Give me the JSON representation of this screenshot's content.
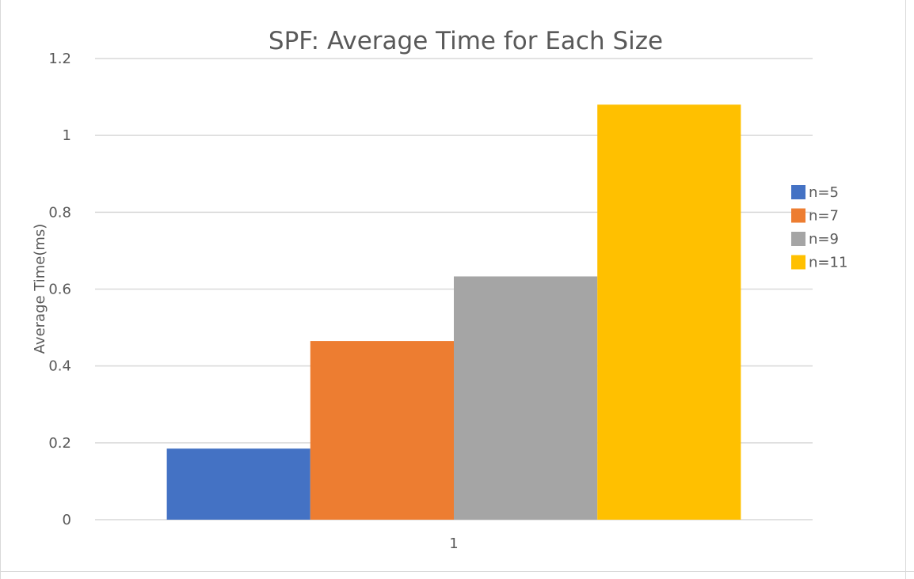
{
  "chart_data": {
    "type": "bar",
    "title": "SPF: Average Time for Each Size",
    "xlabel": "",
    "ylabel": "Average Time(ms)",
    "categories": [
      "1"
    ],
    "ylim": [
      0,
      1.2
    ],
    "yticks": [
      "0",
      "0.2",
      "0.4",
      "0.6",
      "0.8",
      "1",
      "1.2"
    ],
    "grid": true,
    "legend_position": "right",
    "series": [
      {
        "name": "n=5",
        "color": "#4472c4",
        "values": [
          0.185
        ]
      },
      {
        "name": "n=7",
        "color": "#ed7d31",
        "values": [
          0.465
        ]
      },
      {
        "name": "n=9",
        "color": "#a5a5a5",
        "values": [
          0.633
        ]
      },
      {
        "name": "n=11",
        "color": "#ffc000",
        "values": [
          1.08
        ]
      }
    ]
  }
}
